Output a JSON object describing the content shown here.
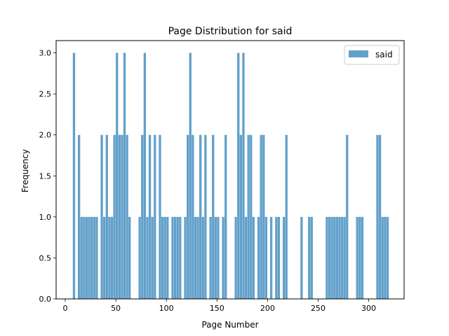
{
  "chart_data": {
    "type": "bar",
    "title": "Page Distribution for said",
    "xlabel": "Page Number",
    "ylabel": "Frequency",
    "xlim": [
      -9,
      335
    ],
    "ylim": [
      0,
      3.15
    ],
    "xticks": [
      0,
      50,
      100,
      150,
      200,
      250,
      300
    ],
    "yticks": [
      0.0,
      0.5,
      1.0,
      1.5,
      2.0,
      2.5,
      3.0
    ],
    "grid": false,
    "legend_position": "top-right",
    "bin_width": 2.5,
    "series": [
      {
        "name": "said",
        "color": "#1f77b4",
        "bins": [
          {
            "x": 7.5,
            "y": 3
          },
          {
            "x": 12.5,
            "y": 2
          },
          {
            "x": 15.0,
            "y": 1
          },
          {
            "x": 17.5,
            "y": 1
          },
          {
            "x": 20.0,
            "y": 1
          },
          {
            "x": 22.5,
            "y": 1
          },
          {
            "x": 25.0,
            "y": 1
          },
          {
            "x": 27.5,
            "y": 1
          },
          {
            "x": 30.0,
            "y": 1
          },
          {
            "x": 35.0,
            "y": 2
          },
          {
            "x": 37.5,
            "y": 1
          },
          {
            "x": 40.0,
            "y": 2
          },
          {
            "x": 42.5,
            "y": 1
          },
          {
            "x": 45.0,
            "y": 1
          },
          {
            "x": 47.5,
            "y": 2
          },
          {
            "x": 50.0,
            "y": 3
          },
          {
            "x": 52.5,
            "y": 2
          },
          {
            "x": 55.0,
            "y": 2
          },
          {
            "x": 57.5,
            "y": 3
          },
          {
            "x": 60.0,
            "y": 2
          },
          {
            "x": 62.5,
            "y": 1
          },
          {
            "x": 72.5,
            "y": 1
          },
          {
            "x": 75.0,
            "y": 2
          },
          {
            "x": 77.5,
            "y": 3
          },
          {
            "x": 80.0,
            "y": 1
          },
          {
            "x": 82.5,
            "y": 2
          },
          {
            "x": 85.0,
            "y": 1
          },
          {
            "x": 87.5,
            "y": 2
          },
          {
            "x": 92.5,
            "y": 2
          },
          {
            "x": 95.0,
            "y": 1
          },
          {
            "x": 97.5,
            "y": 1
          },
          {
            "x": 100.0,
            "y": 1
          },
          {
            "x": 105.0,
            "y": 1
          },
          {
            "x": 107.5,
            "y": 1
          },
          {
            "x": 110.0,
            "y": 1
          },
          {
            "x": 112.5,
            "y": 1
          },
          {
            "x": 117.5,
            "y": 1
          },
          {
            "x": 120.0,
            "y": 2
          },
          {
            "x": 122.5,
            "y": 3
          },
          {
            "x": 125.0,
            "y": 2
          },
          {
            "x": 127.5,
            "y": 1
          },
          {
            "x": 130.0,
            "y": 1
          },
          {
            "x": 132.5,
            "y": 2
          },
          {
            "x": 135.0,
            "y": 1
          },
          {
            "x": 137.5,
            "y": 2
          },
          {
            "x": 142.5,
            "y": 1
          },
          {
            "x": 145.0,
            "y": 2
          },
          {
            "x": 147.5,
            "y": 1
          },
          {
            "x": 150.0,
            "y": 1
          },
          {
            "x": 155.0,
            "y": 1
          },
          {
            "x": 157.5,
            "y": 2
          },
          {
            "x": 167.5,
            "y": 1
          },
          {
            "x": 170.0,
            "y": 3
          },
          {
            "x": 172.5,
            "y": 2
          },
          {
            "x": 175.0,
            "y": 3
          },
          {
            "x": 177.5,
            "y": 1
          },
          {
            "x": 180.0,
            "y": 2
          },
          {
            "x": 182.5,
            "y": 2
          },
          {
            "x": 185.0,
            "y": 1
          },
          {
            "x": 190.0,
            "y": 1
          },
          {
            "x": 192.5,
            "y": 2
          },
          {
            "x": 195.0,
            "y": 2
          },
          {
            "x": 197.5,
            "y": 1
          },
          {
            "x": 202.5,
            "y": 1
          },
          {
            "x": 207.5,
            "y": 1
          },
          {
            "x": 210.0,
            "y": 1
          },
          {
            "x": 215.0,
            "y": 1
          },
          {
            "x": 217.5,
            "y": 2
          },
          {
            "x": 232.5,
            "y": 1
          },
          {
            "x": 240.0,
            "y": 1
          },
          {
            "x": 242.5,
            "y": 1
          },
          {
            "x": 257.5,
            "y": 1
          },
          {
            "x": 260.0,
            "y": 1
          },
          {
            "x": 262.5,
            "y": 1
          },
          {
            "x": 265.0,
            "y": 1
          },
          {
            "x": 267.5,
            "y": 1
          },
          {
            "x": 270.0,
            "y": 1
          },
          {
            "x": 272.5,
            "y": 1
          },
          {
            "x": 275.0,
            "y": 1
          },
          {
            "x": 277.5,
            "y": 2
          },
          {
            "x": 287.5,
            "y": 1
          },
          {
            "x": 290.0,
            "y": 1
          },
          {
            "x": 292.5,
            "y": 1
          },
          {
            "x": 307.5,
            "y": 2
          },
          {
            "x": 310.0,
            "y": 2
          },
          {
            "x": 312.5,
            "y": 1
          },
          {
            "x": 315.0,
            "y": 1
          },
          {
            "x": 317.5,
            "y": 1
          }
        ]
      }
    ]
  }
}
